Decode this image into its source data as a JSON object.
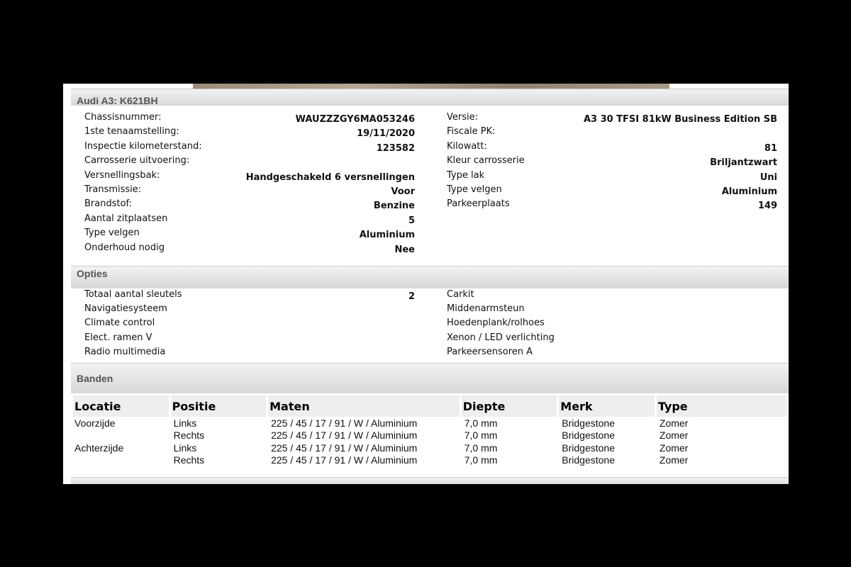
{
  "vehicle": {
    "title": "Audi A3: K621BH",
    "left": [
      [
        "Chassisnummer:",
        "WAUZZZGY6MA053246"
      ],
      [
        "1ste tenaamstelling:",
        "19/11/2020"
      ],
      [
        "Inspectie kilometerstand:",
        "123582"
      ],
      [
        "Carrosserie uitvoering:",
        ""
      ],
      [
        "Versnellingsbak:",
        "Handgeschakeld 6 versnellingen"
      ],
      [
        "Transmissie:",
        "Voor"
      ],
      [
        "Brandstof:",
        "Benzine"
      ],
      [
        "Aantal zitplaatsen",
        "5"
      ],
      [
        "Type velgen",
        "Aluminium"
      ],
      [
        "Onderhoud nodig",
        "Nee"
      ]
    ],
    "right": [
      [
        "Versie:",
        "A3 30 TFSI 81kW Business Edition SB"
      ],
      [
        "Fiscale PK:",
        ""
      ],
      [
        "Kilowatt:",
        "81"
      ],
      [
        "Kleur carrosserie",
        "Briljantzwart"
      ],
      [
        "Type lak",
        "Uni"
      ],
      [
        "Type velgen",
        "Aluminium"
      ],
      [
        "Parkeerplaats",
        "149"
      ]
    ]
  },
  "options": {
    "title": "Opties",
    "left": [
      [
        "Totaal aantal sleutels",
        "2"
      ],
      [
        "Navigatiesysteem",
        ""
      ],
      [
        "Climate control",
        ""
      ],
      [
        "Elect. ramen V",
        ""
      ],
      [
        "Radio multimedia",
        ""
      ]
    ],
    "right": [
      [
        "Carkit",
        ""
      ],
      [
        "Middenarmsteun",
        ""
      ],
      [
        "Hoedenplank/rolhoes",
        ""
      ],
      [
        "Xenon / LED verlichting",
        ""
      ],
      [
        "Parkeersensoren A",
        ""
      ]
    ]
  },
  "tires": {
    "title": "Banden",
    "headers": [
      "Locatie",
      "Positie",
      "Maten",
      "Diepte",
      "Merk",
      "Type"
    ],
    "rows": [
      [
        "Voorzijde",
        "Links",
        "225 / 45 / 17 / 91 / W / Aluminium",
        "7,0 mm",
        "Bridgestone",
        "Zomer"
      ],
      [
        "",
        "Rechts",
        "225 / 45 / 17 / 91 / W / Aluminium",
        "7,0 mm",
        "Bridgestone",
        "Zomer"
      ],
      [
        "Achterzijde",
        "Links",
        "225 / 45 / 17 / 91 / W / Aluminium",
        "7,0 mm",
        "Bridgestone",
        "Zomer"
      ],
      [
        "",
        "Rechts",
        "225 / 45 / 17 / 91 / W / Aluminium",
        "7,0 mm",
        "Bridgestone",
        "Zomer"
      ]
    ]
  }
}
